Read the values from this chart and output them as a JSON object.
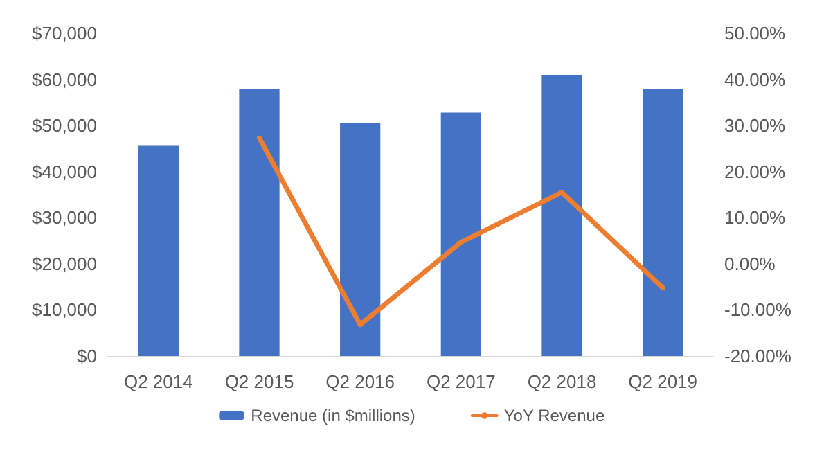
{
  "chart_data": {
    "type": "bar",
    "categories": [
      "Q2 2014",
      "Q2 2015",
      "Q2 2016",
      "Q2 2017",
      "Q2 2018",
      "Q2 2019"
    ],
    "series": [
      {
        "name": "Revenue (in $millions)",
        "color": "#4472c4",
        "values": [
          45600,
          57900,
          50500,
          52800,
          61000,
          57900
        ]
      },
      {
        "name": "YoY Revenue",
        "type": "line",
        "axis": "y2",
        "color": "#ed7d31",
        "values": [
          null,
          27.3,
          -13.2,
          4.7,
          15.5,
          -5.2
        ]
      }
    ],
    "ylim": [
      0,
      70000
    ],
    "yticks": [
      {
        "value": 0,
        "label": "$0"
      },
      {
        "value": 10000,
        "label": "$10,000"
      },
      {
        "value": 20000,
        "label": "$20,000"
      },
      {
        "value": 30000,
        "label": "$30,000"
      },
      {
        "value": 40000,
        "label": "$40,000"
      },
      {
        "value": 50000,
        "label": "$50,000"
      },
      {
        "value": 60000,
        "label": "$60,000"
      },
      {
        "value": 70000,
        "label": "$70,000"
      }
    ],
    "y2lim": [
      -20,
      50
    ],
    "y2ticks": [
      {
        "value": -20,
        "label": "-20.00%"
      },
      {
        "value": -10,
        "label": "-10.00%"
      },
      {
        "value": 0,
        "label": "0.00%"
      },
      {
        "value": 10,
        "label": "10.00%"
      },
      {
        "value": 20,
        "label": "20.00%"
      },
      {
        "value": 30,
        "label": "30.00%"
      },
      {
        "value": 40,
        "label": "40.00%"
      },
      {
        "value": 50,
        "label": "50.00%"
      }
    ],
    "grid": false,
    "legend": "bottom",
    "marker": "none"
  }
}
